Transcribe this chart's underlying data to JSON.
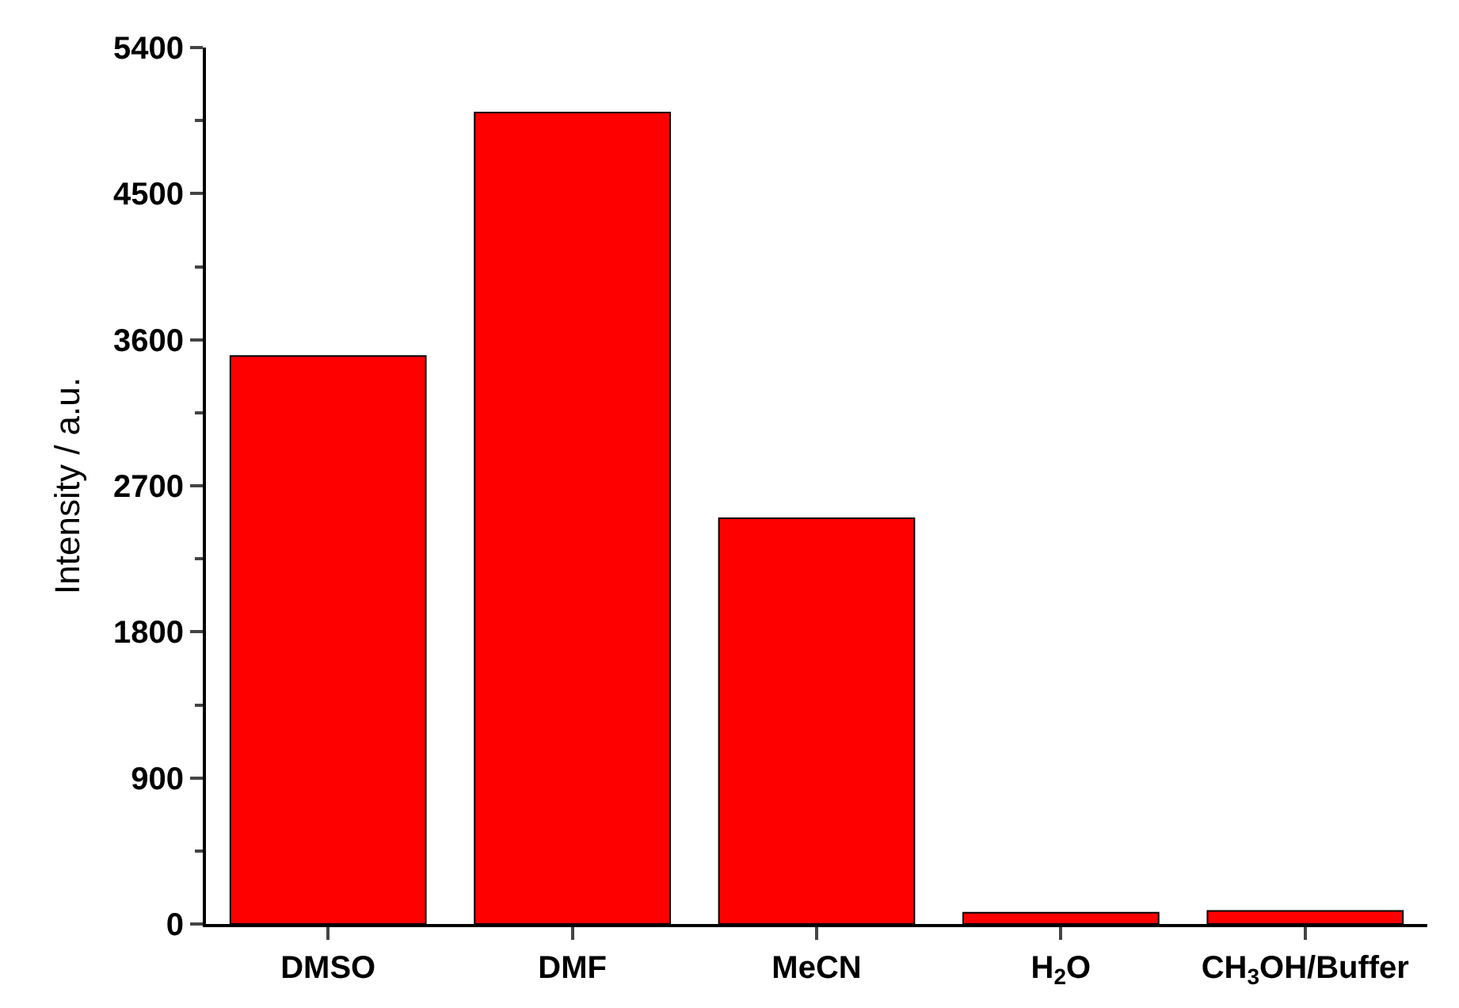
{
  "chart_data": {
    "type": "bar",
    "ylabel": "Intensity / a.u.",
    "categories": [
      "DMSO",
      "DMF",
      "MeCN",
      "H$_{2}$O",
      "CH$_{3}$OH/Buffer"
    ],
    "values": [
      3500,
      5000,
      2500,
      70,
      80
    ],
    "color": "#ff0000",
    "ylim": [
      0,
      5400
    ],
    "yticks": [
      0,
      900,
      1800,
      2700,
      3600,
      4500,
      5400
    ]
  }
}
